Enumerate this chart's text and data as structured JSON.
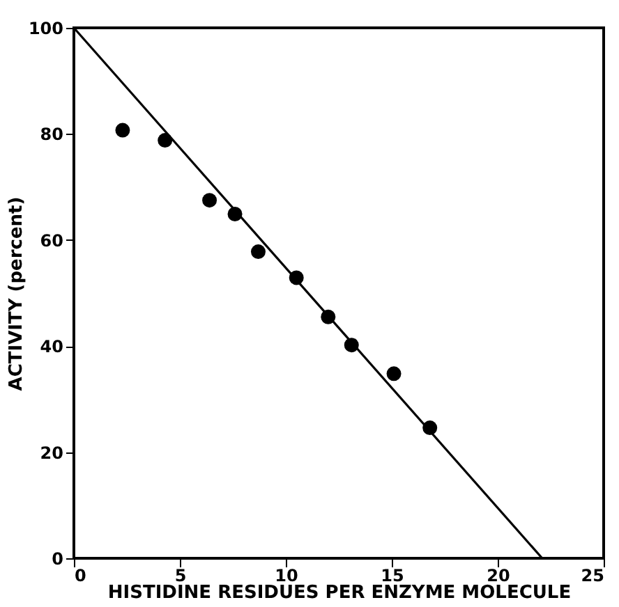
{
  "chart_data": {
    "type": "scatter",
    "xlabel": "HISTIDINE  RESIDUES PER  ENZYME  MOLECULE",
    "ylabel": "ACTIVITY   (percent)",
    "xlim": [
      0,
      25
    ],
    "xticks": [
      0,
      5,
      10,
      15,
      20,
      25
    ],
    "ylim": [
      0,
      100
    ],
    "yticks": [
      0,
      20,
      40,
      60,
      80,
      100
    ],
    "grid": false,
    "marker": "circle",
    "series": [
      {
        "color": "#000000",
        "x": [
          2.3,
          4.3,
          6.4,
          7.6,
          8.7,
          10.5,
          12.0,
          13.1,
          15.1,
          16.8
        ],
        "values": [
          80.7,
          78.8,
          67.5,
          64.9,
          57.8,
          52.9,
          45.5,
          40.2,
          34.8,
          24.6
        ]
      },
      {
        "type": "line",
        "color": "#000000",
        "line_style": "solid",
        "marker": "none",
        "x": [
          0,
          22.1
        ],
        "values": [
          100,
          0
        ]
      }
    ]
  }
}
